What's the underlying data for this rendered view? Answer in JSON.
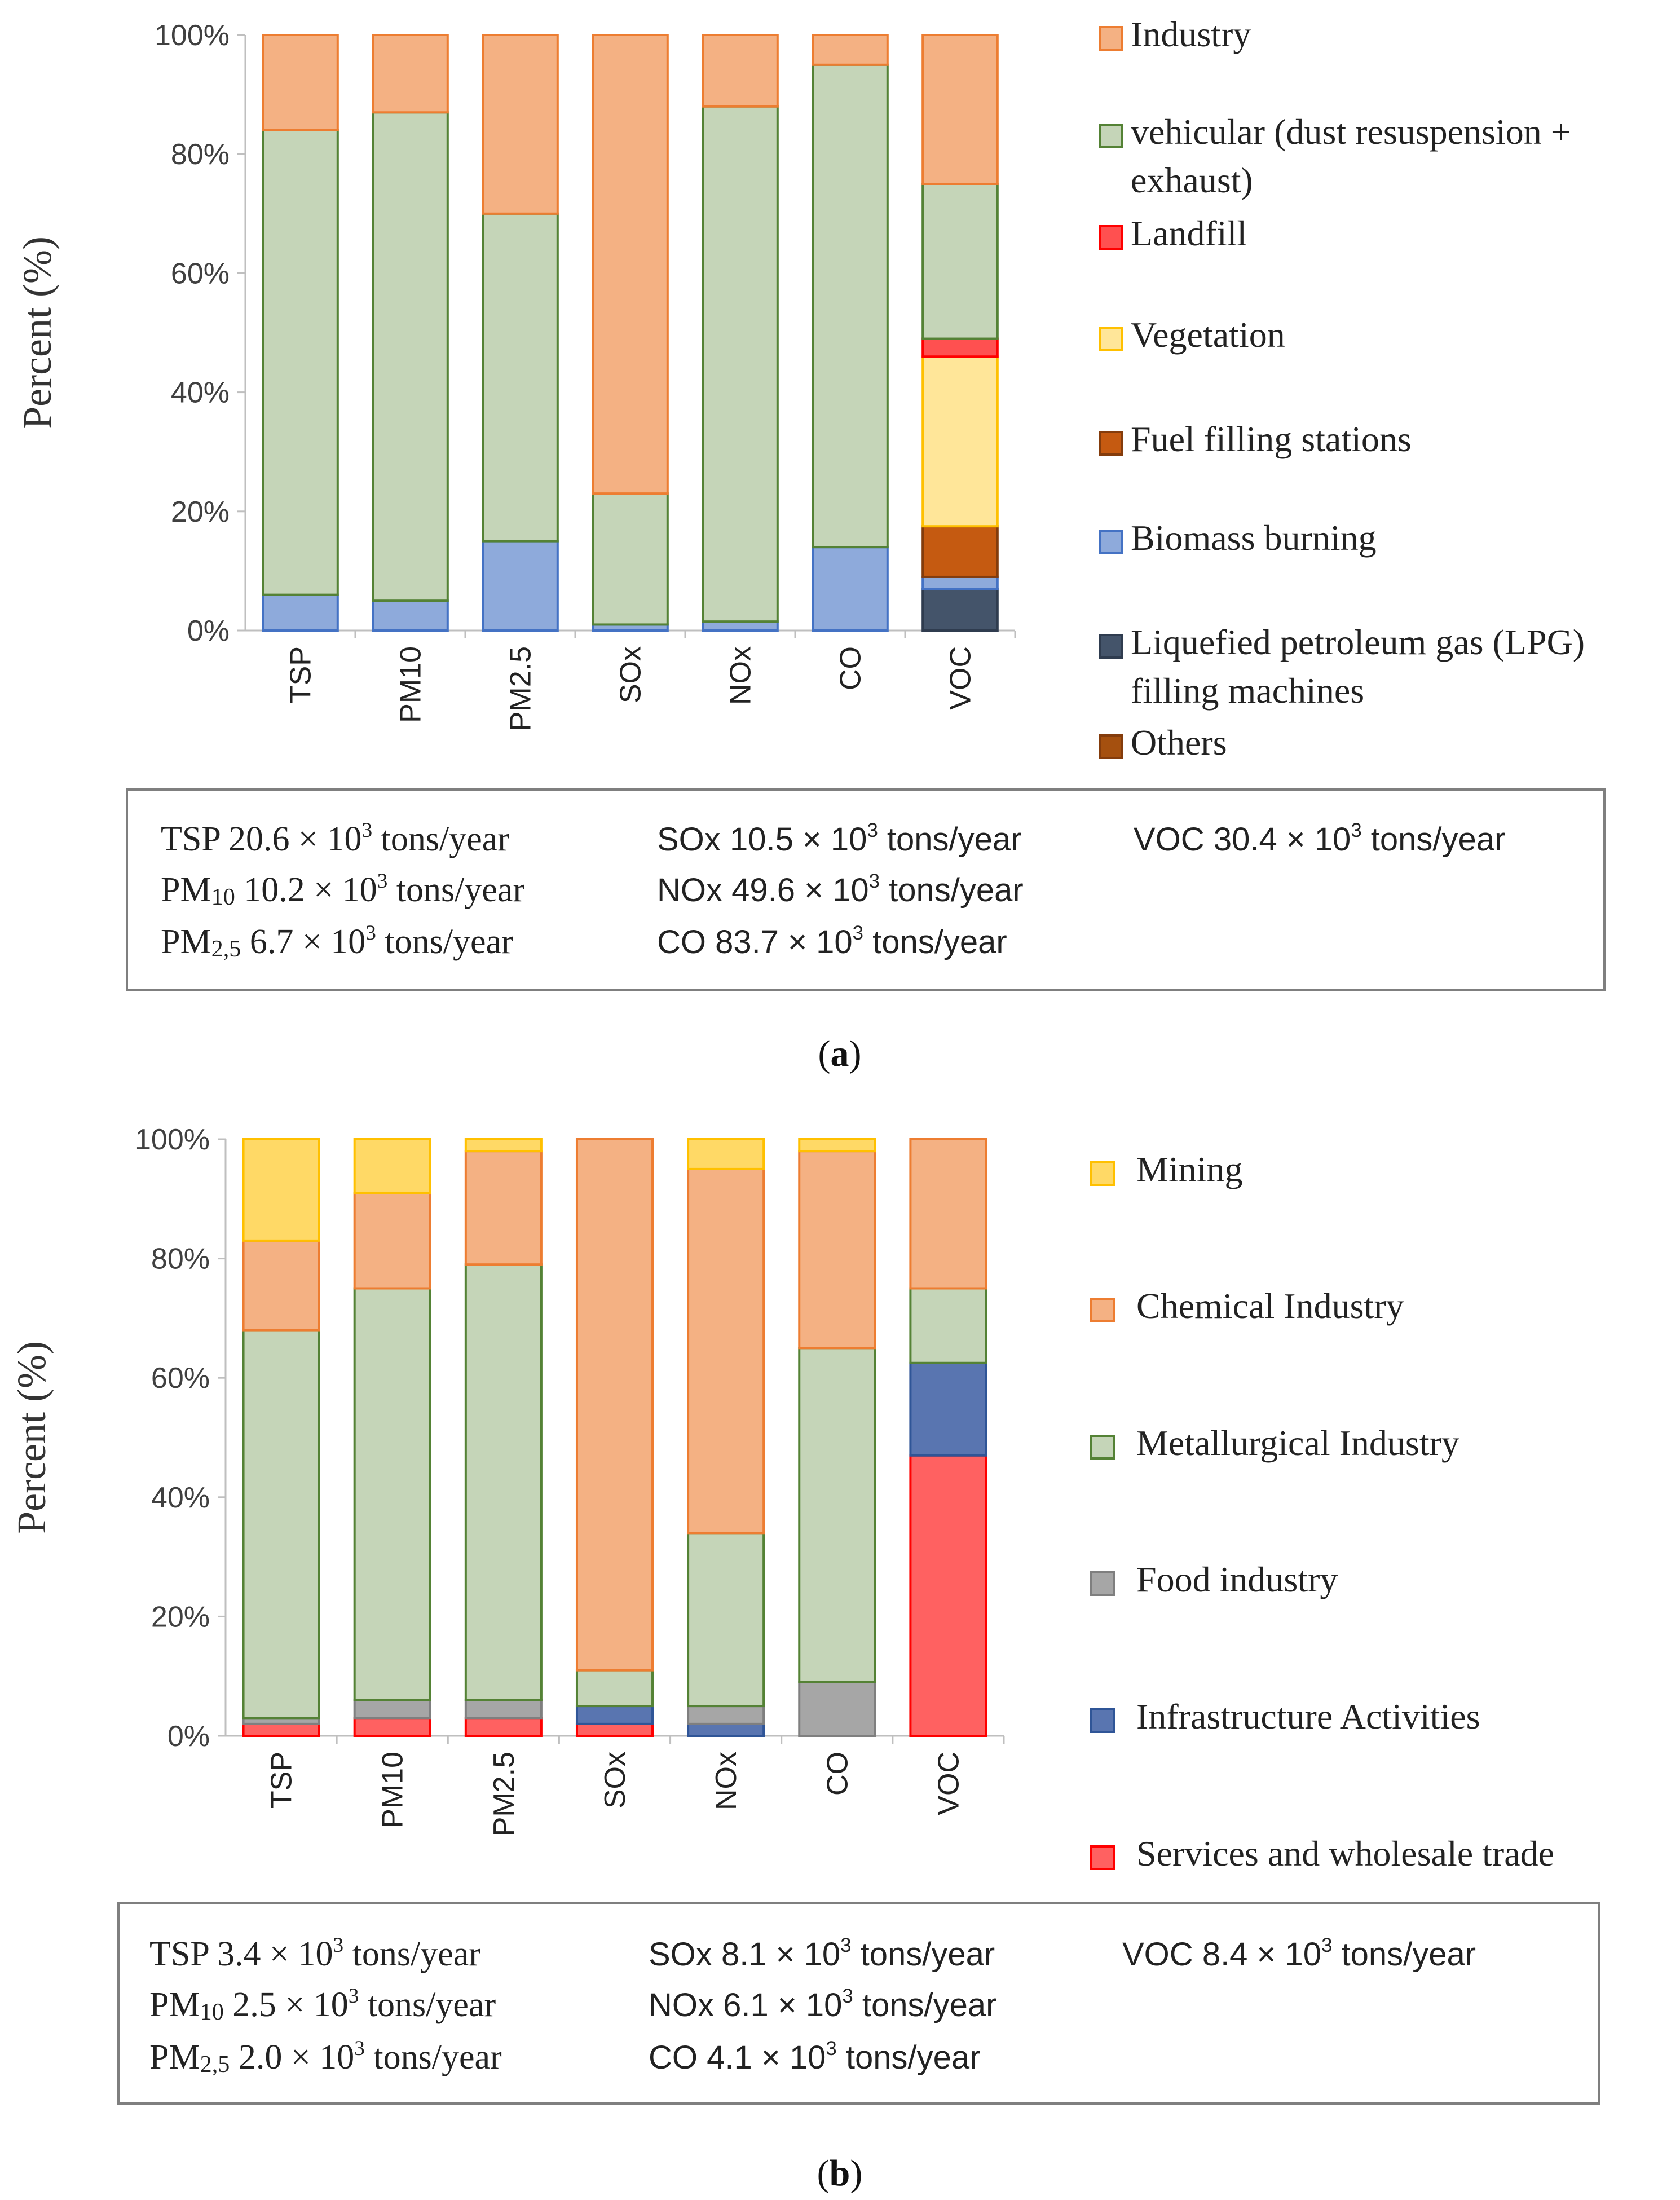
{
  "chart_data": [
    {
      "type": "bar",
      "stacked": true,
      "caption": "a",
      "ylabel": "Percent (%)",
      "ylim": [
        0,
        100
      ],
      "yticks": [
        "0%",
        "20%",
        "40%",
        "60%",
        "80%",
        "100%"
      ],
      "categories": [
        "TSP",
        "PM10",
        "PM2.5",
        "SOx",
        "NOx",
        "CO",
        "VOC"
      ],
      "series": [
        {
          "name": "Liquefied petroleum gas (LPG) filling machines",
          "fill": "#44546a",
          "stroke": "#2f3c4f",
          "values": [
            0,
            0,
            0,
            0,
            0,
            0,
            7
          ]
        },
        {
          "name": "Biomass burning",
          "fill": "#8eaadb",
          "stroke": "#4472c4",
          "values": [
            6,
            5,
            15,
            1,
            1.5,
            14,
            2
          ]
        },
        {
          "name": "Fuel filling stations",
          "fill": "#c55a11",
          "stroke": "#843c0c",
          "values": [
            0,
            0,
            0,
            0,
            0,
            0,
            8.5
          ]
        },
        {
          "name": "Vegetation",
          "fill": "#ffe699",
          "stroke": "#ffc000",
          "values": [
            0,
            0,
            0,
            0,
            0,
            0,
            28.5
          ]
        },
        {
          "name": "Landfill",
          "fill": "#ff5050",
          "stroke": "#ff0000",
          "values": [
            0,
            0,
            0,
            0,
            0,
            0,
            3
          ]
        },
        {
          "name": "vehicular (dust resuspension + exhaust)",
          "fill": "#c5d5b8",
          "stroke": "#548235",
          "values": [
            78,
            82,
            55,
            22,
            86.5,
            81,
            26
          ]
        },
        {
          "name": "Industry",
          "fill": "#f4b183",
          "stroke": "#ed7d31",
          "values": [
            16,
            13,
            30,
            77,
            12,
            5,
            25
          ]
        }
      ],
      "legend": [
        {
          "label": "Industry",
          "fill": "#f4b183",
          "stroke": "#ed7d31"
        },
        {
          "label": "vehicular (dust resuspension +",
          "label2": "exhaust)",
          "fill": "#c5d5b8",
          "stroke": "#548235"
        },
        {
          "label": "Landfill",
          "fill": "#ff5050",
          "stroke": "#ff0000"
        },
        {
          "label": "Vegetation",
          "fill": "#ffe699",
          "stroke": "#ffc000"
        },
        {
          "label": "Fuel filling stations",
          "fill": "#c55a11",
          "stroke": "#843c0c"
        },
        {
          "label": "Biomass burning",
          "fill": "#8eaadb",
          "stroke": "#4472c4"
        },
        {
          "label": "Liquefied petroleum gas (LPG)",
          "label2": "filling machines",
          "fill": "#44546a",
          "stroke": "#2f3c4f"
        },
        {
          "label": "Others",
          "fill": "#a5500f",
          "stroke": "#843c0c"
        }
      ],
      "totals": [
        {
          "pollutant": "TSP",
          "sub": "",
          "value": "20.6",
          "base": "10",
          "exp": "3",
          "unit": "tons/year",
          "style": "serif"
        },
        {
          "pollutant": "PM",
          "sub": "10",
          "value": "10.2",
          "base": "10",
          "exp": "3",
          "unit": "tons/year",
          "style": "serif"
        },
        {
          "pollutant": "PM",
          "sub": "2,5",
          "value": "6.7",
          "base": "10",
          "exp": "3",
          "unit": "tons/year",
          "style": "serif"
        },
        {
          "pollutant": "SOx",
          "sub": "",
          "value": "10.5",
          "base": "10",
          "exp": "3",
          "unit": "tons/year",
          "style": "sans"
        },
        {
          "pollutant": "NOx",
          "sub": "",
          "value": "49.6",
          "base": "10",
          "exp": "3",
          "unit": "tons/year",
          "style": "sans"
        },
        {
          "pollutant": "CO",
          "sub": "",
          "value": "83.7",
          "base": "10",
          "exp": "3",
          "unit": "tons/year",
          "style": "sans"
        },
        {
          "pollutant": "VOC",
          "sub": "",
          "value": "30.4",
          "base": "10",
          "exp": "3",
          "unit": "tons/year",
          "style": "sans"
        }
      ]
    },
    {
      "type": "bar",
      "stacked": true,
      "caption": "b",
      "ylabel": "Percent (%)",
      "ylim": [
        0,
        100
      ],
      "yticks": [
        "0%",
        "20%",
        "40%",
        "60%",
        "80%",
        "100%"
      ],
      "categories": [
        "TSP",
        "PM10",
        "PM2.5",
        "SOx",
        "NOx",
        "CO",
        "VOC"
      ],
      "series": [
        {
          "name": "Services and wholesale trade",
          "fill": "#ff6161",
          "stroke": "#ff0000",
          "values": [
            2,
            3,
            3,
            2,
            0,
            0,
            47
          ]
        },
        {
          "name": "Infrastructure Activities",
          "fill": "#5975b0",
          "stroke": "#2f5597",
          "values": [
            0,
            0,
            0,
            3,
            2,
            0,
            15.5
          ]
        },
        {
          "name": "Food industry",
          "fill": "#a6a6a6",
          "stroke": "#7f7f7f",
          "values": [
            1,
            3,
            3,
            0,
            3,
            9,
            0
          ]
        },
        {
          "name": "Metallurgical Industry",
          "fill": "#c5d5b8",
          "stroke": "#548235",
          "values": [
            65,
            69,
            73,
            6,
            29,
            56,
            12.5
          ]
        },
        {
          "name": "Chemical Industry",
          "fill": "#f4b183",
          "stroke": "#ed7d31",
          "values": [
            15,
            16,
            19,
            89,
            61,
            33,
            25
          ]
        },
        {
          "name": "Mining",
          "fill": "#ffd966",
          "stroke": "#ffc000",
          "values": [
            17,
            9,
            2,
            0,
            5,
            2,
            0
          ]
        }
      ],
      "legend": [
        {
          "label": "Mining",
          "fill": "#ffd966",
          "stroke": "#ffc000"
        },
        {
          "label": "Chemical Industry",
          "fill": "#f4b183",
          "stroke": "#ed7d31"
        },
        {
          "label": "Metallurgical Industry",
          "fill": "#c5d5b8",
          "stroke": "#548235"
        },
        {
          "label": "Food industry",
          "fill": "#a6a6a6",
          "stroke": "#7f7f7f"
        },
        {
          "label": "Infrastructure Activities",
          "fill": "#5975b0",
          "stroke": "#2f5597"
        },
        {
          "label": "Services and wholesale trade",
          "fill": "#ff6161",
          "stroke": "#ff0000"
        }
      ],
      "totals": [
        {
          "pollutant": "TSP",
          "sub": "",
          "value": "3.4",
          "base": "10",
          "exp": "3",
          "unit": "tons/year",
          "style": "serif"
        },
        {
          "pollutant": "PM",
          "sub": "10",
          "value": "2.5",
          "base": "10",
          "exp": "3",
          "unit": "tons/year",
          "style": "serif"
        },
        {
          "pollutant": "PM",
          "sub": "2,5",
          "value": "2.0",
          "base": "10",
          "exp": "3",
          "unit": "tons/year",
          "style": "serif"
        },
        {
          "pollutant": "SOx",
          "sub": "",
          "value": "8.1",
          "base": "10",
          "exp": "3",
          "unit": "tons/year",
          "style": "sans"
        },
        {
          "pollutant": "NOx",
          "sub": "",
          "value": "6.1",
          "base": "10",
          "exp": "3",
          "unit": "tons/year",
          "style": "sans"
        },
        {
          "pollutant": "CO",
          "sub": "",
          "value": "4.1",
          "base": "10",
          "exp": "3",
          "unit": "tons/year",
          "style": "sans"
        },
        {
          "pollutant": "VOC",
          "sub": "",
          "value": "8.4",
          "base": "10",
          "exp": "3",
          "unit": "tons/year",
          "style": "sans"
        }
      ]
    }
  ]
}
